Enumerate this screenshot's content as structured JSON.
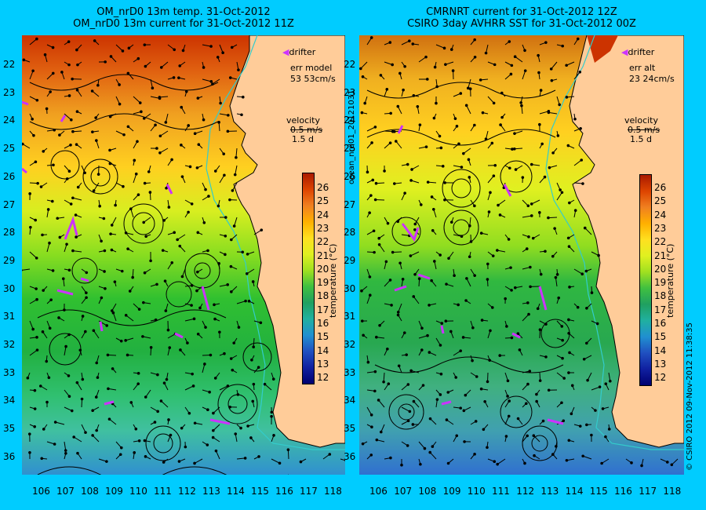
{
  "left": {
    "title1": "OM_nrD0 13m temp. 31-Oct-2012",
    "title2": "OM_nrD0 13m current for 31-Oct-2012 11Z",
    "legend_drifter": "drifter",
    "err_label": "err model",
    "err_value": "53 53cm/s",
    "velocity_label": "velocity",
    "velocity_value": "0.5 m/s",
    "velocity_time": "1.5 d",
    "colorbar_label": "temperature (°C)"
  },
  "right": {
    "title1": "CMRNRT current for 31-Oct-2012 12Z",
    "title2": "CSIRO 3day AVHRR SST for 31-Oct-2012 00Z",
    "legend_drifter": "drifter",
    "err_label": "err alt",
    "err_value": "23 24cm/s",
    "velocity_label": "velocity",
    "velocity_value": "0.5 m/s",
    "velocity_time": "1.5 d",
    "colorbar_label": "temperature (°C)"
  },
  "side_text_middle": "ocean_nrd01_20121031",
  "side_text_right": "© CSIRO 2012   09-Nov-2012 11:38:35",
  "axes": {
    "lat_ticks": [
      "22",
      "23",
      "24",
      "25",
      "26",
      "27",
      "28",
      "29",
      "30",
      "31",
      "32",
      "33",
      "34",
      "35",
      "36"
    ],
    "lon_ticks": [
      "106",
      "107",
      "108",
      "109",
      "110",
      "111",
      "112",
      "113",
      "114",
      "115",
      "116",
      "117",
      "118"
    ]
  },
  "colorbar_ticks": [
    "26",
    "25",
    "24",
    "23",
    "22",
    "21",
    "20",
    "19",
    "18",
    "17",
    "16",
    "15",
    "14",
    "13",
    "12"
  ],
  "colors": {
    "background": "#00ccff",
    "land": "#ffcc99",
    "drifter": "#cc33ff",
    "isobath": "#33cccc"
  }
}
